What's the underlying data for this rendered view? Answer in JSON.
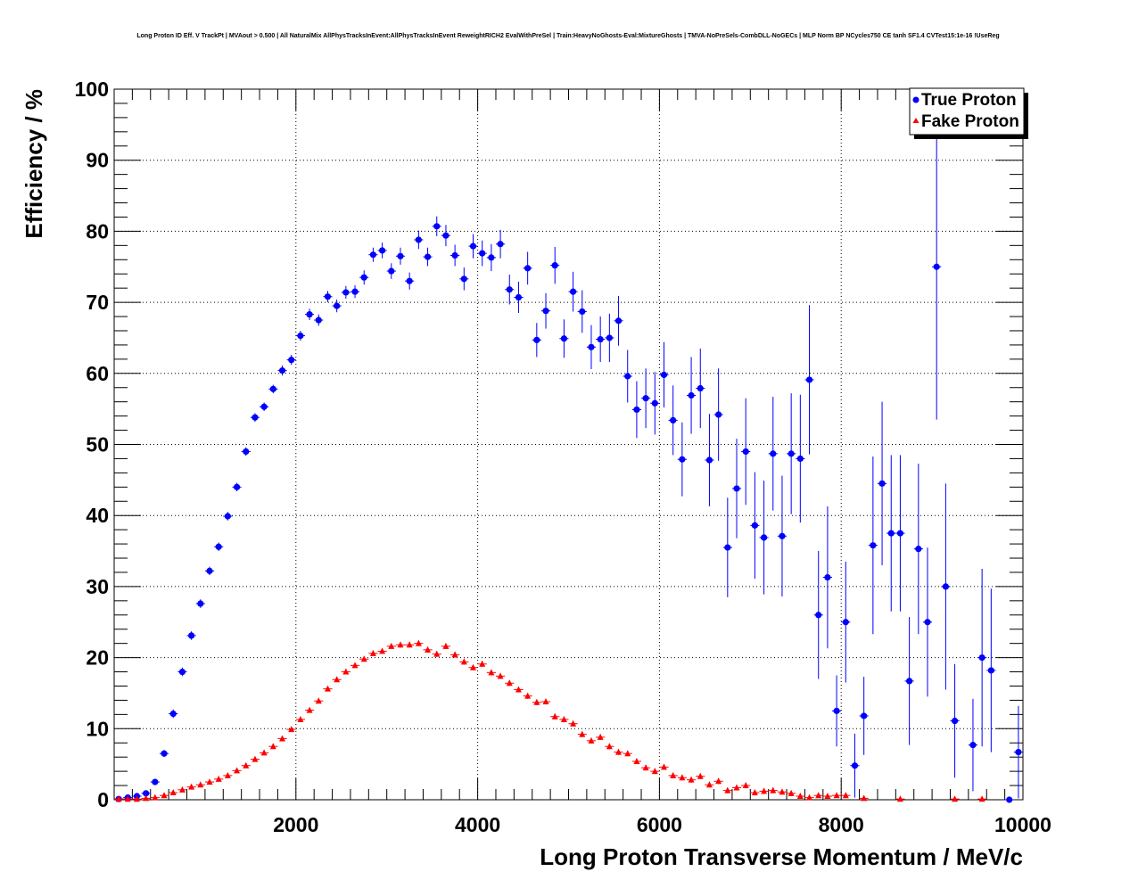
{
  "chart_data": {
    "type": "scatter",
    "title": "Long Proton ID Eff. V TrackPt | MVAout > 0.500 | All NaturalMix AllPhysTracksInEvent:AllPhysTracksInEvent ReweightRICH2 EvalWithPreSel | Train:HeavyNoGhosts-Eval:MixtureGhosts | TMVA-NoPreSels-CombDLL-NoGECs | MLP Norm BP NCycles750 CE tanh SF1.4 CVTest15:1e-16 !UseReg",
    "xlabel": "Long Proton Transverse Momentum / MeV/c",
    "ylabel": "Efficiency / %",
    "xlim": [
      0,
      10000
    ],
    "ylim": [
      0,
      100
    ],
    "x_ticks": [
      2000,
      4000,
      6000,
      8000,
      10000
    ],
    "y_ticks": [
      0,
      10,
      20,
      30,
      40,
      50,
      60,
      70,
      80,
      90,
      100
    ],
    "grid": true,
    "legend_position": "top-right",
    "series": [
      {
        "name": "True Proton",
        "color": "#0000ff",
        "marker": "circle",
        "x": [
          50,
          150,
          250,
          350,
          450,
          550,
          650,
          750,
          850,
          950,
          1050,
          1150,
          1250,
          1350,
          1450,
          1550,
          1650,
          1750,
          1850,
          1950,
          2050,
          2150,
          2250,
          2350,
          2450,
          2550,
          2650,
          2750,
          2850,
          2950,
          3050,
          3150,
          3250,
          3350,
          3450,
          3550,
          3650,
          3750,
          3850,
          3950,
          4050,
          4150,
          4250,
          4350,
          4450,
          4550,
          4650,
          4750,
          4850,
          4950,
          5050,
          5150,
          5250,
          5350,
          5450,
          5550,
          5650,
          5750,
          5850,
          5950,
          6050,
          6150,
          6250,
          6350,
          6450,
          6550,
          6650,
          6750,
          6850,
          6950,
          7050,
          7150,
          7250,
          7350,
          7450,
          7550,
          7650,
          7750,
          7850,
          7950,
          8050,
          8150,
          8250,
          8350,
          8450,
          8550,
          8650,
          8750,
          8850,
          8950,
          9050,
          9150,
          9250,
          9450,
          9550,
          9650,
          9850,
          9950
        ],
        "y": [
          0.1,
          0.3,
          0.5,
          0.9,
          2.5,
          6.5,
          12.1,
          18.0,
          23.1,
          27.6,
          32.2,
          35.6,
          39.9,
          44.0,
          49.0,
          53.8,
          55.3,
          57.8,
          60.4,
          61.9,
          65.3,
          68.3,
          67.5,
          70.8,
          69.5,
          71.4,
          71.5,
          73.5,
          76.7,
          77.3,
          74.4,
          76.5,
          73.0,
          78.8,
          76.4,
          80.7,
          79.4,
          76.6,
          73.3,
          77.9,
          76.9,
          76.3,
          78.2,
          71.8,
          70.7,
          74.8,
          64.7,
          68.8,
          75.2,
          64.9,
          71.5,
          68.7,
          63.7,
          64.8,
          65.0,
          67.4,
          59.6,
          54.9,
          56.5,
          55.8,
          59.8,
          53.4,
          47.9,
          56.9,
          57.9,
          47.8,
          54.2,
          35.5,
          43.8,
          49.0,
          38.6,
          36.9,
          48.7,
          37.1,
          48.7,
          48.0,
          59.1,
          26.0,
          31.3,
          12.5,
          25.0,
          4.8,
          11.8,
          35.8,
          44.5,
          37.5,
          37.5,
          16.7,
          35.3,
          25.0,
          75.0,
          30.0,
          11.1,
          7.7,
          20.0,
          18.2,
          0.0,
          6.7
        ],
        "yerr": [
          0.1,
          0.2,
          0.2,
          0.3,
          0.4,
          0.5,
          0.6,
          0.6,
          0.6,
          0.6,
          0.6,
          0.6,
          0.6,
          0.6,
          0.6,
          0.6,
          0.6,
          0.6,
          0.7,
          0.7,
          0.7,
          0.8,
          0.8,
          0.8,
          0.9,
          0.9,
          0.9,
          1.0,
          1.0,
          1.1,
          1.1,
          1.2,
          1.2,
          1.3,
          1.3,
          1.4,
          1.5,
          1.5,
          1.6,
          1.7,
          1.8,
          1.9,
          2.0,
          2.1,
          2.2,
          2.3,
          2.4,
          2.5,
          2.6,
          2.7,
          2.8,
          3.0,
          3.1,
          3.2,
          3.4,
          3.5,
          3.7,
          4.0,
          4.2,
          4.4,
          4.6,
          4.9,
          5.2,
          5.4,
          5.6,
          6.5,
          6.5,
          7.0,
          7.0,
          7.5,
          7.5,
          8.0,
          8.0,
          8.5,
          8.5,
          9.0,
          10.5,
          9.0,
          10.0,
          5.0,
          8.5,
          4.5,
          5.5,
          12.5,
          11.5,
          11.0,
          11.0,
          9.0,
          12.0,
          10.5,
          21.5,
          14.5,
          8.0,
          6.5,
          12.5,
          11.5,
          0.0,
          6.5
        ]
      },
      {
        "name": "Fake Proton",
        "color": "#ff0000",
        "marker": "triangle",
        "x": [
          50,
          150,
          250,
          350,
          450,
          550,
          650,
          750,
          850,
          950,
          1050,
          1150,
          1250,
          1350,
          1450,
          1550,
          1650,
          1750,
          1850,
          1950,
          2050,
          2150,
          2250,
          2350,
          2450,
          2550,
          2650,
          2750,
          2850,
          2950,
          3050,
          3150,
          3250,
          3350,
          3450,
          3550,
          3650,
          3750,
          3850,
          3950,
          4050,
          4150,
          4250,
          4350,
          4450,
          4550,
          4650,
          4750,
          4850,
          4950,
          5050,
          5150,
          5250,
          5350,
          5450,
          5550,
          5650,
          5750,
          5850,
          5950,
          6050,
          6150,
          6250,
          6350,
          6450,
          6550,
          6650,
          6750,
          6850,
          6950,
          7050,
          7150,
          7250,
          7350,
          7450,
          7550,
          7650,
          7750,
          7850,
          7950,
          8050,
          8250,
          8650,
          9250,
          9550
        ],
        "y": [
          0.1,
          0.1,
          0.1,
          0.2,
          0.3,
          0.6,
          1.0,
          1.4,
          1.8,
          2.1,
          2.5,
          2.9,
          3.4,
          4.1,
          4.8,
          5.7,
          6.6,
          7.5,
          8.6,
          9.9,
          11.3,
          12.6,
          13.9,
          15.6,
          16.9,
          18.0,
          18.9,
          19.8,
          20.6,
          20.9,
          21.6,
          21.8,
          21.8,
          22.0,
          21.1,
          20.5,
          21.6,
          20.4,
          19.4,
          18.6,
          19.1,
          17.9,
          17.4,
          16.4,
          15.5,
          14.6,
          13.7,
          13.8,
          11.7,
          11.3,
          10.7,
          9.2,
          8.3,
          8.8,
          7.5,
          6.7,
          6.5,
          5.4,
          4.5,
          4.0,
          4.6,
          3.4,
          3.1,
          2.8,
          3.3,
          2.1,
          2.6,
          1.3,
          1.7,
          2.0,
          1.0,
          1.2,
          1.3,
          1.1,
          0.9,
          0.5,
          0.3,
          0.6,
          0.5,
          0.6,
          0.6,
          0.2,
          0.1,
          0.1,
          0.1
        ],
        "yerr": [
          0.05,
          0.05,
          0.05,
          0.1,
          0.1,
          0.1,
          0.1,
          0.1,
          0.1,
          0.1,
          0.1,
          0.1,
          0.2,
          0.2,
          0.2,
          0.2,
          0.2,
          0.2,
          0.2,
          0.2,
          0.2,
          0.2,
          0.2,
          0.3,
          0.3,
          0.3,
          0.3,
          0.3,
          0.3,
          0.3,
          0.3,
          0.4,
          0.4,
          0.4,
          0.4,
          0.4,
          0.4,
          0.4,
          0.4,
          0.4,
          0.4,
          0.4,
          0.4,
          0.4,
          0.4,
          0.4,
          0.4,
          0.4,
          0.4,
          0.4,
          0.4,
          0.4,
          0.4,
          0.4,
          0.4,
          0.4,
          0.4,
          0.4,
          0.4,
          0.4,
          0.4,
          0.4,
          0.4,
          0.4,
          0.4,
          0.4,
          0.4,
          0.4,
          0.4,
          0.4,
          0.4,
          0.4,
          0.4,
          0.4,
          0.4,
          0.3,
          0.3,
          0.3,
          0.3,
          0.3,
          0.3,
          0.2,
          0.1,
          0.1,
          0.1
        ]
      }
    ]
  }
}
